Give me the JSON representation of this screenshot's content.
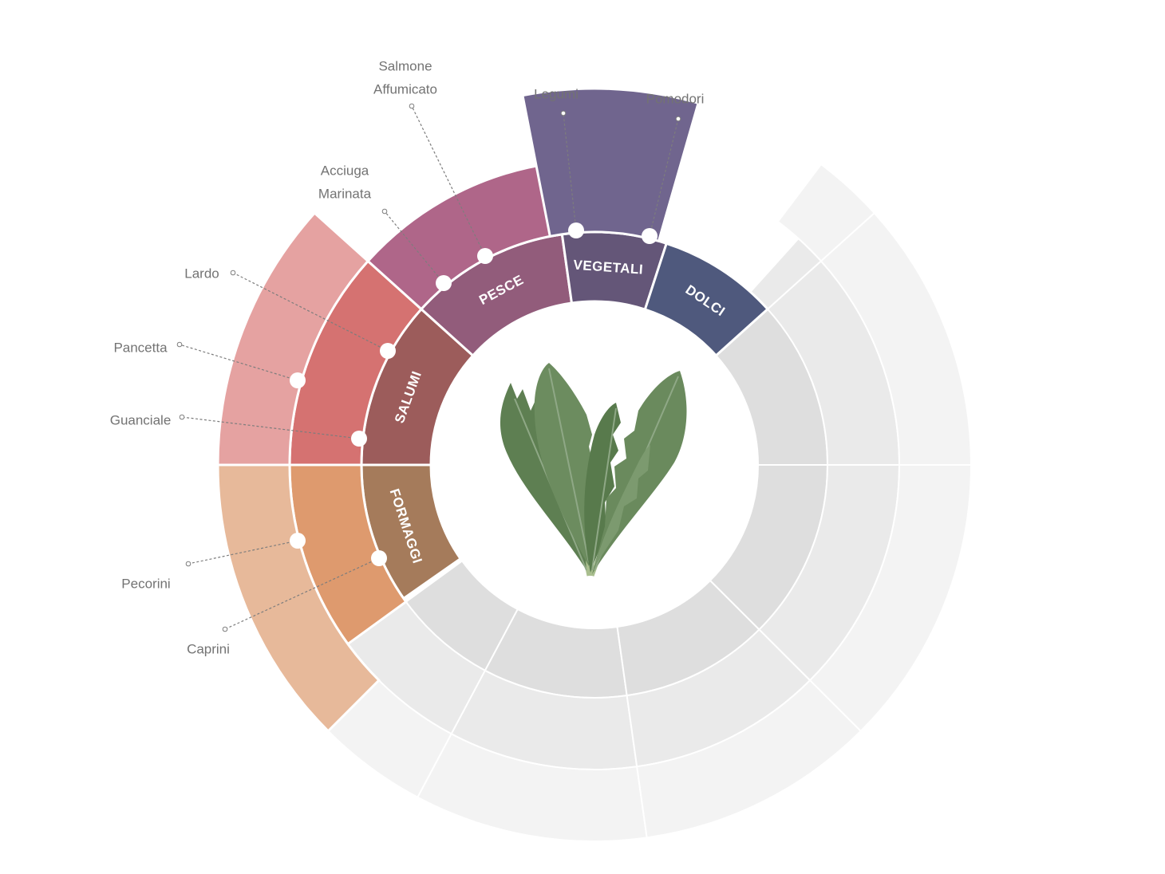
{
  "categories": [
    {
      "id": "formaggi",
      "label": "FORMAGGI",
      "inner_color": "#A57B5B",
      "middle_color": "#DE9A6E",
      "outer_color": "#E7B99A",
      "pairings": [
        "Pecorini",
        "Caprini"
      ]
    },
    {
      "id": "salumi",
      "label": "SALUMI",
      "inner_color": "#9C5C5B",
      "middle_color": "#D57271",
      "outer_color": "#E5A2A1",
      "pairings": [
        "Lardo",
        "Pancetta",
        "Guanciale"
      ]
    },
    {
      "id": "pesce",
      "label": "PESCE",
      "inner_color": "#925C7B",
      "middle_color": "#AF6689",
      "outer_color": null,
      "pairings": [
        "Acciuga Marinata",
        "Salmone Affumicato"
      ]
    },
    {
      "id": "vegetali",
      "label": "VEGETALI",
      "inner_color": "#645678",
      "middle_color": null,
      "outer_color": "#70658E",
      "pairings": [
        "Legumi",
        "Pomodori"
      ]
    },
    {
      "id": "dolci",
      "label": "DOLCI",
      "inner_color": "#4F597D",
      "middle_color": null,
      "outer_color": null,
      "pairings": []
    }
  ],
  "pairing_labels": {
    "lardo": "Lardo",
    "pancetta": "Pancetta",
    "guanciale": "Guanciale",
    "pecorini": "Pecorini",
    "caprini": "Caprini",
    "acciuga_line1": "Acciuga",
    "acciuga_line2": "Marinata",
    "salmone_line1": "Salmone",
    "salmone_line2": "Affumicato",
    "legumi": "Legumi",
    "pomodori": "Pomodori"
  },
  "center_image": "dandelion-leaves",
  "colors": {
    "inactive_inner": "#DEDEDE",
    "inactive_middle": "#EAEAEA",
    "inactive_outer": "#F3F3F3",
    "separator": "#FFFFFF",
    "leaf_dark": "#5E7F52",
    "leaf_light": "#8FA886",
    "stem": "#A9BE8E"
  }
}
